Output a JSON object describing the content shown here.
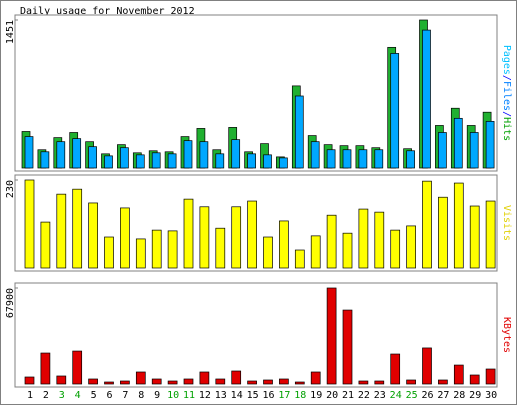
{
  "chart_data": {
    "type": "bar",
    "title": "Daily usage for November 2012",
    "categories": [
      "1",
      "2",
      "3",
      "4",
      "5",
      "6",
      "7",
      "8",
      "9",
      "10",
      "11",
      "12",
      "13",
      "14",
      "15",
      "16",
      "17",
      "18",
      "19",
      "20",
      "21",
      "22",
      "23",
      "24",
      "25",
      "26",
      "27",
      "28",
      "29",
      "30"
    ],
    "weekend_color": "#00a000",
    "weekend_indices": [
      2,
      3,
      9,
      10,
      16,
      17,
      23,
      24
    ],
    "panels": [
      {
        "label_parts": [
          {
            "text": "Pages",
            "color": "#00c0ff"
          },
          {
            "text": "/",
            "color": "#0000ff"
          },
          {
            "text": "Files",
            "color": "#0080ff"
          },
          {
            "text": "/",
            "color": "#0000ff"
          },
          {
            "text": "Hits",
            "color": "#00a000"
          }
        ],
        "ylim": [
          0,
          1451
        ],
        "yticks": [
          1451
        ],
        "series": [
          {
            "name": "Hits",
            "color": "#20b030",
            "values": [
              358,
              179,
              298,
              348,
              258,
              139,
              229,
              149,
              169,
              159,
              308,
              388,
              179,
              398,
              159,
              239,
              109,
              805,
              318,
              229,
              219,
              219,
              199,
              1183,
              189,
              1451,
              417,
              586,
              417,
              547
            ]
          },
          {
            "name": "Files",
            "color": "#00a8ff",
            "values": [
              308,
              159,
              258,
              288,
              209,
              119,
              199,
              129,
              149,
              139,
              268,
              258,
              139,
              278,
              139,
              129,
              99,
              706,
              258,
              179,
              179,
              179,
              179,
              1123,
              169,
              1352,
              348,
              487,
              348,
              457
            ]
          }
        ]
      },
      {
        "label_parts": [
          {
            "text": "Visits",
            "color": "#e0d000"
          }
        ],
        "ylim": [
          0,
          230
        ],
        "yticks": [
          230
        ],
        "series": [
          {
            "name": "Visits",
            "color": "#ffff00",
            "values": [
              230,
              120,
              193,
              206,
              170,
              81,
              157,
              76,
              99,
              97,
              180,
              160,
              104,
              160,
              175,
              81,
              123,
              47,
              84,
              138,
              91,
              154,
              146,
              99,
              110,
              227,
              185,
              222,
              162,
              175
            ]
          }
        ]
      },
      {
        "label_parts": [
          {
            "text": "KBytes",
            "color": "#e00000"
          }
        ],
        "ylim": [
          0,
          67900
        ],
        "yticks": [
          67900
        ],
        "series": [
          {
            "name": "KBytes",
            "color": "#e00000",
            "values": [
              4950,
              21900,
              5660,
              23300,
              3540,
              1410,
              2120,
              8490,
              3540,
              2120,
              3540,
              8490,
              3540,
              9190,
              2120,
              2830,
              3540,
              1410,
              8490,
              67900,
              52300,
              2120,
              2120,
              21200,
              2830,
              25500,
              2830,
              13400,
              6360,
              10600
            ]
          }
        ]
      }
    ]
  }
}
